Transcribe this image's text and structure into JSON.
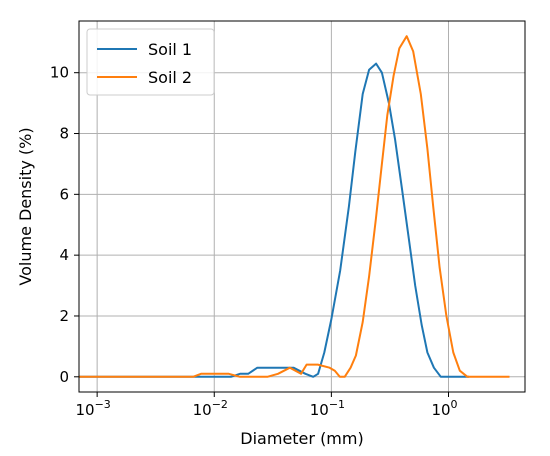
{
  "chart_data": {
    "type": "line",
    "xscale": "log",
    "xlabel": "Diameter (mm)",
    "ylabel": "Volume Density (%)",
    "xlim": [
      0.0007,
      4.5
    ],
    "ylim": [
      -0.5,
      11.7
    ],
    "grid": true,
    "legend_position": "top-left",
    "x_ticks": [
      0.001,
      0.01,
      0.1,
      1
    ],
    "x_tick_labels": [
      {
        "base": "10",
        "exp": "−3"
      },
      {
        "base": "10",
        "exp": "−2"
      },
      {
        "base": "10",
        "exp": "−1"
      },
      {
        "base": "10",
        "exp": "0"
      }
    ],
    "y_ticks": [
      0,
      2,
      4,
      6,
      8,
      10
    ],
    "y_tick_labels": [
      "0",
      "2",
      "4",
      "6",
      "8",
      "10"
    ],
    "series": [
      {
        "name": "Soil 1",
        "color": "#1f77b4",
        "points": [
          [
            0.0007,
            0
          ],
          [
            0.0099,
            0
          ],
          [
            0.0139,
            0
          ],
          [
            0.0166,
            0.1
          ],
          [
            0.0195,
            0.1
          ],
          [
            0.0233,
            0.3
          ],
          [
            0.029,
            0.3
          ],
          [
            0.0375,
            0.3
          ],
          [
            0.0475,
            0.3
          ],
          [
            0.06,
            0.1
          ],
          [
            0.07,
            0.0
          ],
          [
            0.077,
            0.1
          ],
          [
            0.087,
            0.8
          ],
          [
            0.1,
            1.9
          ],
          [
            0.119,
            3.5
          ],
          [
            0.141,
            5.6
          ],
          [
            0.16,
            7.4
          ],
          [
            0.185,
            9.3
          ],
          [
            0.21,
            10.1
          ],
          [
            0.241,
            10.3
          ],
          [
            0.27,
            10.0
          ],
          [
            0.31,
            9.0
          ],
          [
            0.35,
            7.8
          ],
          [
            0.4,
            6.2
          ],
          [
            0.46,
            4.5
          ],
          [
            0.52,
            3.0
          ],
          [
            0.59,
            1.7
          ],
          [
            0.66,
            0.8
          ],
          [
            0.75,
            0.3
          ],
          [
            0.86,
            0.0
          ],
          [
            1.0,
            0
          ],
          [
            1.5,
            0
          ]
        ]
      },
      {
        "name": "Soil 2",
        "color": "#ff7f0e",
        "points": [
          [
            0.0007,
            0
          ],
          [
            0.0066,
            0
          ],
          [
            0.0077,
            0.1
          ],
          [
            0.0103,
            0.1
          ],
          [
            0.0133,
            0.1
          ],
          [
            0.0166,
            0.0
          ],
          [
            0.0202,
            0
          ],
          [
            0.0284,
            0.0
          ],
          [
            0.035,
            0.1
          ],
          [
            0.0442,
            0.3
          ],
          [
            0.055,
            0.1
          ],
          [
            0.0614,
            0.4
          ],
          [
            0.0765,
            0.4
          ],
          [
            0.0965,
            0.3
          ],
          [
            0.107,
            0.2
          ],
          [
            0.118,
            0.0
          ],
          [
            0.13,
            0.0
          ],
          [
            0.146,
            0.3
          ],
          [
            0.162,
            0.7
          ],
          [
            0.185,
            1.8
          ],
          [
            0.21,
            3.3
          ],
          [
            0.24,
            5.2
          ],
          [
            0.27,
            7.0
          ],
          [
            0.3,
            8.6
          ],
          [
            0.34,
            9.9
          ],
          [
            0.38,
            10.8
          ],
          [
            0.44,
            11.2
          ],
          [
            0.5,
            10.7
          ],
          [
            0.58,
            9.3
          ],
          [
            0.66,
            7.5
          ],
          [
            0.74,
            5.6
          ],
          [
            0.84,
            3.6
          ],
          [
            0.96,
            2.0
          ],
          [
            1.1,
            0.8
          ],
          [
            1.25,
            0.2
          ],
          [
            1.45,
            0.0
          ],
          [
            2.0,
            0
          ],
          [
            3.32,
            0
          ]
        ]
      }
    ]
  }
}
